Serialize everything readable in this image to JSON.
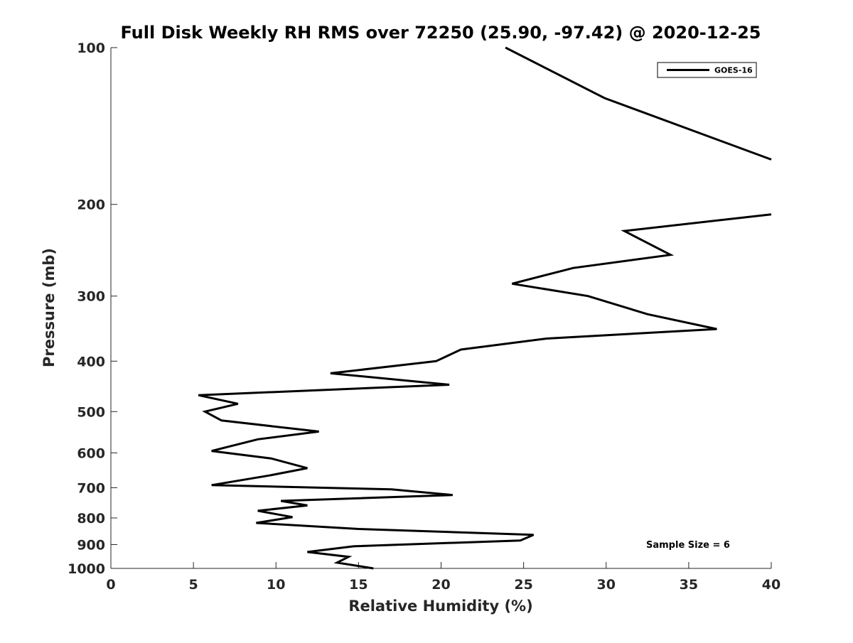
{
  "chart_data": {
    "type": "line",
    "title": "Full Disk Weekly RH RMS over 72250 (25.90, -97.42) @ 2020-12-25",
    "xlabel": "Relative Humidity (%)",
    "ylabel": "Pressure (mb)",
    "xlim": [
      0,
      40
    ],
    "ylim": [
      100,
      1000
    ],
    "yscale": "log",
    "y_reversed": true,
    "xticks": [
      0,
      5,
      10,
      15,
      20,
      25,
      30,
      35,
      40
    ],
    "yticks": [
      100,
      200,
      300,
      400,
      500,
      600,
      700,
      800,
      900,
      1000
    ],
    "grid": false,
    "legend_position": "top-right",
    "annotation": "Sample Size = 6",
    "line_color": "#000000",
    "series": [
      {
        "name": "GOES-16",
        "segments": [
          [
            {
              "x": 23.9,
              "y": 100
            },
            {
              "x": 29.9,
              "y": 125
            },
            {
              "x": 40.0,
              "y": 164
            }
          ],
          [
            {
              "x": 40.0,
              "y": 209
            },
            {
              "x": 31.1,
              "y": 225
            },
            {
              "x": 33.9,
              "y": 250
            },
            {
              "x": 28.0,
              "y": 265
            },
            {
              "x": 24.3,
              "y": 284
            },
            {
              "x": 28.9,
              "y": 300
            },
            {
              "x": 32.5,
              "y": 325
            },
            {
              "x": 36.7,
              "y": 347
            },
            {
              "x": 26.4,
              "y": 362
            },
            {
              "x": 21.2,
              "y": 380
            },
            {
              "x": 19.7,
              "y": 400
            },
            {
              "x": 13.3,
              "y": 422
            },
            {
              "x": 20.5,
              "y": 444
            },
            {
              "x": 5.3,
              "y": 465
            },
            {
              "x": 7.7,
              "y": 483
            },
            {
              "x": 5.7,
              "y": 500
            },
            {
              "x": 6.7,
              "y": 520
            },
            {
              "x": 12.6,
              "y": 546
            },
            {
              "x": 8.9,
              "y": 565
            },
            {
              "x": 6.1,
              "y": 595
            },
            {
              "x": 9.7,
              "y": 615
            },
            {
              "x": 11.9,
              "y": 642
            },
            {
              "x": 9.6,
              "y": 663
            },
            {
              "x": 6.1,
              "y": 692
            },
            {
              "x": 17.0,
              "y": 705
            },
            {
              "x": 20.7,
              "y": 723
            },
            {
              "x": 10.3,
              "y": 742
            },
            {
              "x": 11.9,
              "y": 757
            },
            {
              "x": 8.9,
              "y": 775
            },
            {
              "x": 11.0,
              "y": 797
            },
            {
              "x": 8.8,
              "y": 818
            },
            {
              "x": 15.0,
              "y": 840
            },
            {
              "x": 25.6,
              "y": 862
            },
            {
              "x": 24.8,
              "y": 884
            },
            {
              "x": 14.7,
              "y": 907
            },
            {
              "x": 11.9,
              "y": 930
            },
            {
              "x": 14.4,
              "y": 950
            },
            {
              "x": 13.7,
              "y": 975
            },
            {
              "x": 15.9,
              "y": 1000
            }
          ]
        ]
      }
    ]
  }
}
